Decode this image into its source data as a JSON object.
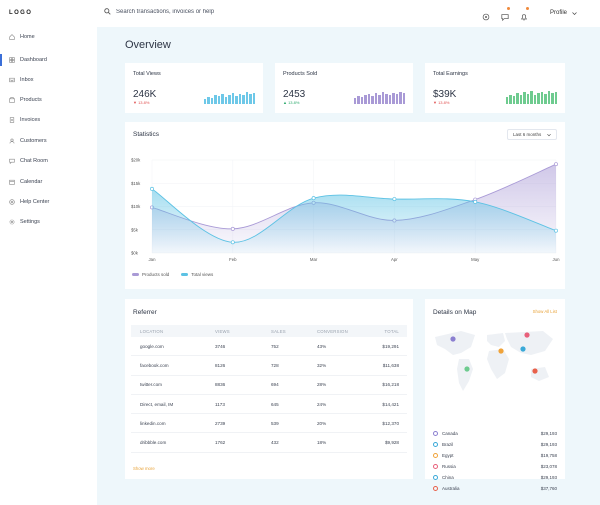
{
  "logo": "LOGO",
  "search": {
    "placeholder": "Search transactions, invoices or help"
  },
  "header": {
    "profile_label": "Profile"
  },
  "sidebar": {
    "items": [
      {
        "label": "Home",
        "icon": "home-icon"
      },
      {
        "label": "Dashboard",
        "icon": "dashboard-icon",
        "active": true
      },
      {
        "label": "Inbox",
        "icon": "inbox-icon"
      },
      {
        "label": "Products",
        "icon": "products-icon"
      },
      {
        "label": "Invoices",
        "icon": "invoice-icon"
      },
      {
        "label": "Customers",
        "icon": "customers-icon"
      },
      {
        "label": "Chat Room",
        "icon": "chat-icon"
      },
      {
        "label": "Calendar",
        "icon": "calendar-icon"
      },
      {
        "label": "Help Center",
        "icon": "help-icon"
      },
      {
        "label": "Settings",
        "icon": "settings-icon"
      }
    ]
  },
  "main": {
    "title": "Overview"
  },
  "stats": [
    {
      "title": "Total Views",
      "value": "246K",
      "change": "13.8%",
      "trend": "down",
      "color": "#6ec8e8"
    },
    {
      "title": "Products Sold",
      "value": "2453",
      "change": "13.8%",
      "trend": "up",
      "color": "#a99ad6"
    },
    {
      "title": "Total Earnings",
      "value": "$39K",
      "change": "13.8%",
      "trend": "down",
      "color": "#6ecb8f"
    }
  ],
  "statistics": {
    "title": "Statistics",
    "period": "Last 6 months",
    "legend": [
      "Products sold",
      "Total views"
    ]
  },
  "chart_data": {
    "type": "area",
    "x": [
      "Jan",
      "Feb",
      "Mar",
      "Apr",
      "May",
      "Jun"
    ],
    "y_ticks": [
      "$0k",
      "$5k",
      "$10k",
      "$15k",
      "$20k"
    ],
    "ylim": [
      0,
      20
    ],
    "series": [
      {
        "name": "Products sold",
        "color": "#a99ad6",
        "values": [
          9.8,
          5.2,
          10.8,
          7.0,
          11.5,
          19.1
        ]
      },
      {
        "name": "Total views",
        "color": "#5cc2e4",
        "values": [
          13.8,
          2.3,
          11.8,
          11.6,
          11.0,
          4.8
        ]
      }
    ]
  },
  "referrer": {
    "title": "Referrer",
    "columns": [
      "LOCATION",
      "VIEWS",
      "SALES",
      "CONVERSION",
      "TOTAL"
    ],
    "rows": [
      [
        "google.com",
        "3746",
        "752",
        "43%",
        "$19,291"
      ],
      [
        "facebook.com",
        "8126",
        "728",
        "32%",
        "$11,638"
      ],
      [
        "twitter.com",
        "8836",
        "694",
        "28%",
        "$16,218"
      ],
      [
        "Direct, email, IM",
        "1173",
        "645",
        "24%",
        "$14,421"
      ],
      [
        "linkedin.com",
        "2739",
        "539",
        "20%",
        "$12,370"
      ],
      [
        "dribbble.com",
        "1762",
        "432",
        "18%",
        "$9,928"
      ]
    ],
    "show_more": "Show more"
  },
  "map": {
    "title": "Details on Map",
    "show_all": "Show All List",
    "countries": [
      {
        "name": "Canada",
        "amount": "$29,193",
        "color": "#8b7fd0"
      },
      {
        "name": "Brazil",
        "amount": "$29,193",
        "color": "#3aa9d8"
      },
      {
        "name": "Egypt",
        "amount": "$19,758",
        "color": "#f0a33a"
      },
      {
        "name": "Russia",
        "amount": "$23,078",
        "color": "#e8607a"
      },
      {
        "name": "China",
        "amount": "$29,193",
        "color": "#3aa9d8"
      },
      {
        "name": "Australia",
        "amount": "$37,760",
        "color": "#e8604a"
      }
    ]
  }
}
